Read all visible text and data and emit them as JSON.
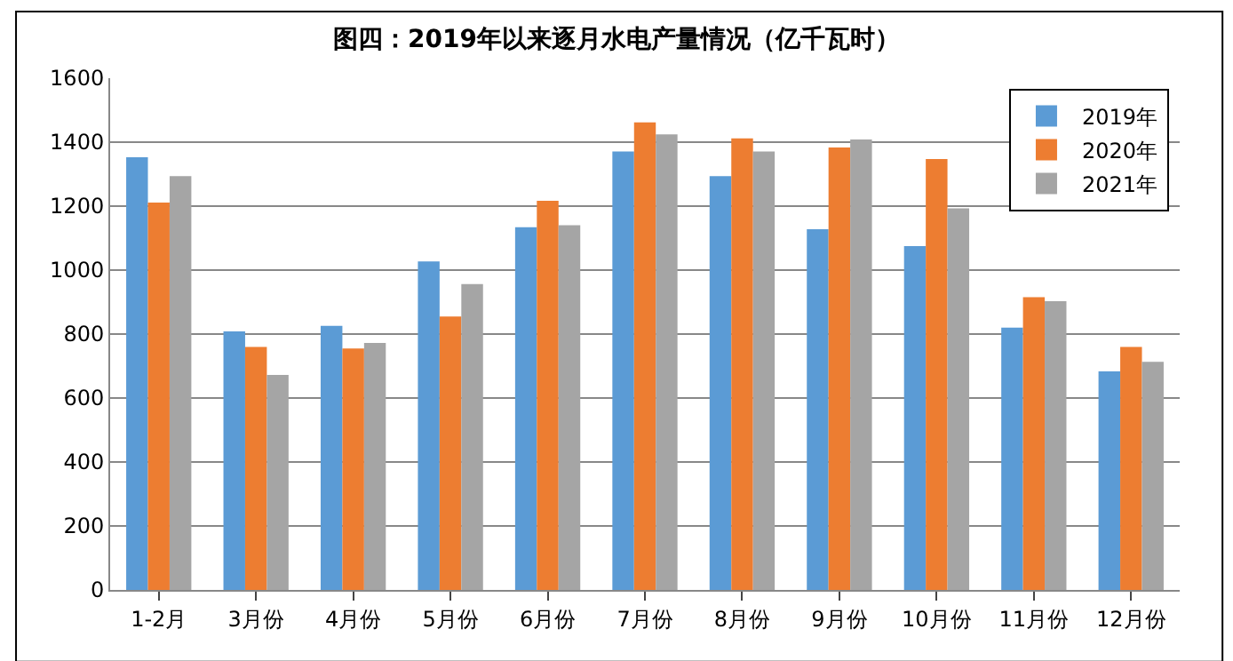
{
  "chart_data": {
    "type": "bar",
    "title": "图四：2019年以来逐月水电产量情况（亿千瓦时）",
    "categories": [
      "1-2月",
      "3月份",
      "4月份",
      "5月份",
      "6月份",
      "7月份",
      "8月份",
      "9月份",
      "10月份",
      "11月份",
      "12月份"
    ],
    "series": [
      {
        "name": "2019年",
        "color": "#5b9bd5",
        "values": [
          1353,
          808,
          826,
          1027,
          1134,
          1371,
          1294,
          1128,
          1075,
          820,
          683
        ]
      },
      {
        "name": "2020年",
        "color": "#ed7d31",
        "values": [
          1211,
          760,
          755,
          855,
          1217,
          1462,
          1412,
          1383,
          1347,
          915,
          760
        ]
      },
      {
        "name": "2021年",
        "color": "#a5a5a5",
        "values": [
          1294,
          672,
          772,
          956,
          1140,
          1424,
          1371,
          1408,
          1193,
          903,
          713
        ]
      }
    ],
    "ylim": [
      0,
      1600
    ],
    "yticks": [
      0,
      200,
      400,
      600,
      800,
      1000,
      1200,
      1400,
      1600
    ],
    "grid": "y",
    "legend": "top right"
  }
}
